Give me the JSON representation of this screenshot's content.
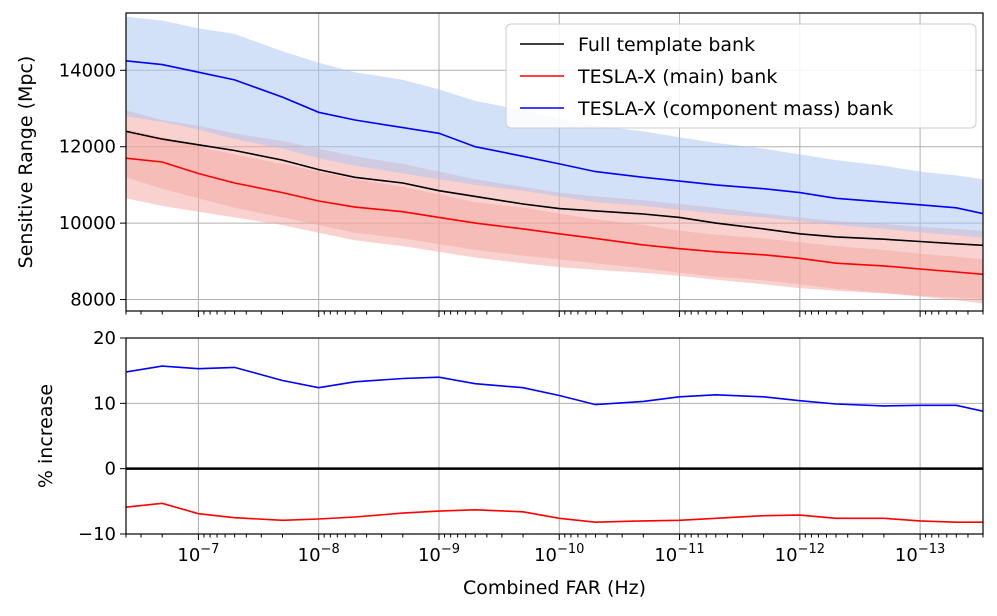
{
  "chart_data": [
    {
      "type": "line",
      "ylabel": "Sensitive Range (Mpc)",
      "xlabel": "",
      "x_scale": "log",
      "x_reversed": true,
      "xlim": [
        4e-07,
        3e-14
      ],
      "ylim": [
        7700,
        15500
      ],
      "yticks": [
        8000,
        10000,
        12000,
        14000
      ],
      "ytick_labels": [
        "8000",
        "10000",
        "12000",
        "14000"
      ],
      "grid": true,
      "legend_position": "top-right",
      "x": [
        4e-07,
        2e-07,
        1e-07,
        5e-08,
        2e-08,
        1e-08,
        5e-09,
        2e-09,
        1e-09,
        5e-10,
        2e-10,
        1e-10,
        5e-11,
        2e-11,
        1e-11,
        5e-12,
        2e-12,
        1e-12,
        5e-13,
        2e-13,
        1e-13,
        5e-14,
        3e-14
      ],
      "series": [
        {
          "name": "Full template bank",
          "color": "#000000",
          "values": [
            12400,
            12200,
            12050,
            11900,
            11650,
            11400,
            11200,
            11050,
            10850,
            10700,
            10500,
            10380,
            10320,
            10240,
            10150,
            10000,
            9850,
            9720,
            9640,
            9580,
            9520,
            9460,
            9420
          ],
          "band_low": [
            10650,
            10450,
            10300,
            10150,
            9950,
            9750,
            9550,
            9400,
            9250,
            9100,
            8950,
            8850,
            8780,
            8700,
            8620,
            8520,
            8400,
            8300,
            8230,
            8160,
            8100,
            8050,
            8020
          ],
          "band_high": [
            12950,
            12700,
            12550,
            12350,
            12150,
            11950,
            11750,
            11550,
            11350,
            11150,
            10950,
            10800,
            10700,
            10600,
            10500,
            10400,
            10250,
            10150,
            10050,
            9980,
            9900,
            9850,
            9800
          ],
          "band_color": "#f4a6a0"
        },
        {
          "name": "TESLA-X (main) bank",
          "color": "#ff0000",
          "values": [
            11700,
            11600,
            11300,
            11050,
            10800,
            10580,
            10420,
            10300,
            10150,
            10000,
            9850,
            9720,
            9600,
            9430,
            9330,
            9250,
            9170,
            9080,
            8950,
            8880,
            8800,
            8720,
            8660
          ],
          "band_low": [
            11200,
            10900,
            10650,
            10400,
            10150,
            9950,
            9750,
            9600,
            9450,
            9300,
            9150,
            9050,
            8950,
            8820,
            8700,
            8600,
            8500,
            8400,
            8280,
            8180,
            8080,
            7980,
            7900
          ],
          "band_high": [
            12450,
            12250,
            12000,
            11800,
            11550,
            11350,
            11150,
            10950,
            10750,
            10550,
            10400,
            10250,
            10100,
            9950,
            9800,
            9700,
            9600,
            9500,
            9400,
            9300,
            9200,
            9120,
            9050
          ],
          "band_color": "#f4a6a0"
        },
        {
          "name": "TESLA-X (component mass) bank",
          "color": "#0000ff",
          "values": [
            14250,
            14150,
            13950,
            13750,
            13300,
            12900,
            12700,
            12500,
            12350,
            12000,
            11750,
            11550,
            11350,
            11200,
            11100,
            11000,
            10900,
            10800,
            10650,
            10550,
            10480,
            10400,
            10250
          ],
          "band_low": [
            12800,
            12650,
            12450,
            12200,
            11950,
            11700,
            11500,
            11300,
            11150,
            11000,
            10850,
            10700,
            10550,
            10450,
            10350,
            10250,
            10150,
            10050,
            9950,
            9850,
            9760,
            9680,
            9620
          ],
          "band_high": [
            15400,
            15300,
            15100,
            14950,
            14500,
            14200,
            13950,
            13750,
            13500,
            13200,
            12950,
            12750,
            12550,
            12400,
            12250,
            12100,
            11950,
            11800,
            11650,
            11500,
            11350,
            11250,
            11150
          ],
          "band_color": "#a7c4f2"
        }
      ]
    },
    {
      "type": "line",
      "ylabel": "% increase",
      "xlabel": "Combined FAR (Hz)",
      "x_scale": "log",
      "x_reversed": true,
      "xlim": [
        4e-07,
        3e-14
      ],
      "ylim": [
        -10,
        20
      ],
      "yticks": [
        -10,
        0,
        10,
        20
      ],
      "ytick_labels": [
        "−10",
        "0",
        "10",
        "20"
      ],
      "xticks": [
        1e-07,
        1e-08,
        1e-09,
        1e-10,
        1e-11,
        1e-12,
        1e-13
      ],
      "xtick_exponents": [
        "−7",
        "−8",
        "−9",
        "−10",
        "−11",
        "−12",
        "−13"
      ],
      "xtick_base": "10",
      "grid": true,
      "zero_line": 0,
      "x": [
        4e-07,
        2e-07,
        1e-07,
        5e-08,
        2e-08,
        1e-08,
        5e-09,
        2e-09,
        1e-09,
        5e-10,
        2e-10,
        1e-10,
        5e-11,
        2e-11,
        1e-11,
        5e-12,
        2e-12,
        1e-12,
        5e-13,
        2e-13,
        1e-13,
        5e-14,
        3e-14
      ],
      "series": [
        {
          "color": "#0000ff",
          "values": [
            14.8,
            15.7,
            15.3,
            15.5,
            13.5,
            12.4,
            13.3,
            13.8,
            14.0,
            13.0,
            12.4,
            11.2,
            9.8,
            10.3,
            11.0,
            11.3,
            11.0,
            10.4,
            9.9,
            9.6,
            9.7,
            9.7,
            8.8
          ]
        },
        {
          "color": "#ff0000",
          "values": [
            -5.9,
            -5.3,
            -6.9,
            -7.5,
            -7.9,
            -7.7,
            -7.4,
            -6.8,
            -6.5,
            -6.3,
            -6.6,
            -7.6,
            -8.2,
            -8.0,
            -7.9,
            -7.6,
            -7.2,
            -7.1,
            -7.6,
            -7.6,
            -8.0,
            -8.2,
            -8.2
          ]
        }
      ]
    }
  ]
}
